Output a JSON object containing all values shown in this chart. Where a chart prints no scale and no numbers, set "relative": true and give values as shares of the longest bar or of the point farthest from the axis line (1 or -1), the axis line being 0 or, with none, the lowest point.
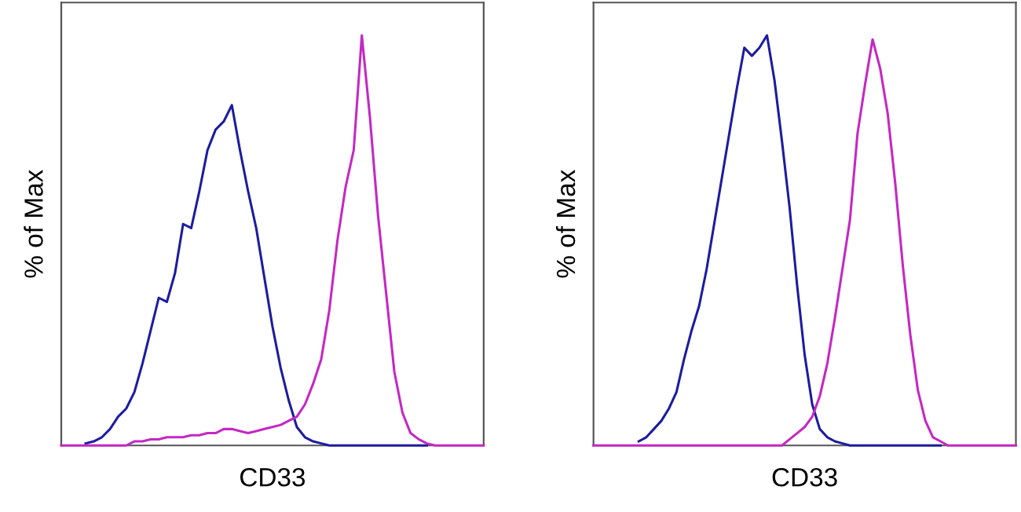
{
  "chart_data": [
    {
      "type": "line",
      "relative": true,
      "ylabel": "% of Max",
      "xlabel": "CD33",
      "categories": [
        null,
        null,
        null,
        null,
        null,
        null,
        null,
        null,
        null,
        null,
        null,
        null,
        null,
        null,
        null,
        null,
        null,
        null,
        null,
        null,
        null,
        null,
        null,
        null,
        null,
        null,
        null,
        null,
        null,
        null,
        null,
        null,
        null,
        null,
        null,
        null,
        null,
        null,
        null,
        null,
        null,
        null,
        null,
        null,
        null,
        null,
        null,
        null,
        null,
        null,
        null,
        null,
        null
      ],
      "series": [
        {
          "color": "#1c1ca0",
          "values": [
            null,
            null,
            null,
            0.005,
            0.01,
            0.02,
            0.04,
            0.07,
            0.09,
            0.13,
            0.2,
            0.28,
            0.36,
            0.35,
            0.42,
            0.54,
            0.53,
            0.62,
            0.72,
            0.77,
            0.79,
            0.83,
            0.72,
            0.62,
            0.53,
            0.41,
            0.29,
            0.19,
            0.11,
            0.045,
            0.02,
            0.01,
            0.005,
            0,
            0,
            0,
            0,
            0,
            0,
            0,
            0,
            0,
            0,
            0,
            0,
            0,
            null,
            null,
            null,
            null,
            null,
            null,
            null
          ]
        },
        {
          "color": "#c428c4",
          "values": [
            0,
            0,
            0,
            0,
            0,
            0,
            0,
            0,
            0,
            0.01,
            0.01,
            0.015,
            0.015,
            0.02,
            0.02,
            0.02,
            0.025,
            0.025,
            0.03,
            0.03,
            0.04,
            0.04,
            0.035,
            0.03,
            0.035,
            0.04,
            0.045,
            0.05,
            0.06,
            0.07,
            0.1,
            0.15,
            0.21,
            0.33,
            0.5,
            0.63,
            0.72,
            1,
            0.8,
            0.56,
            0.37,
            0.18,
            0.08,
            0.03,
            0.015,
            0.005,
            0,
            0,
            0,
            0,
            0,
            0,
            0
          ]
        }
      ]
    },
    {
      "type": "line",
      "relative": true,
      "ylabel": "% of Max",
      "xlabel": "CD33",
      "categories": [
        null,
        null,
        null,
        null,
        null,
        null,
        null,
        null,
        null,
        null,
        null,
        null,
        null,
        null,
        null,
        null,
        null,
        null,
        null,
        null,
        null,
        null,
        null,
        null,
        null,
        null,
        null,
        null,
        null,
        null,
        null,
        null,
        null,
        null,
        null,
        null,
        null,
        null,
        null,
        null,
        null,
        null,
        null,
        null,
        null,
        null,
        null,
        null,
        null,
        null,
        null,
        null,
        null,
        null,
        null,
        null,
        null
      ],
      "series": [
        {
          "color": "#1c1ca0",
          "values": [
            null,
            null,
            null,
            null,
            null,
            null,
            0.01,
            0.02,
            0.04,
            0.06,
            0.09,
            0.13,
            0.21,
            0.28,
            0.34,
            0.43,
            0.54,
            0.65,
            0.76,
            0.87,
            0.97,
            0.95,
            0.97,
            1,
            0.89,
            0.74,
            0.58,
            0.39,
            0.22,
            0.1,
            0.04,
            0.02,
            0.01,
            0.005,
            0,
            0,
            0,
            0,
            0,
            0,
            0,
            0,
            0,
            0,
            0,
            0,
            0,
            null,
            null,
            null,
            null,
            null,
            null,
            null,
            null,
            null,
            null
          ]
        },
        {
          "color": "#c428c4",
          "values": [
            0,
            0,
            0,
            0,
            0,
            0,
            0,
            0,
            0,
            0,
            0,
            0,
            0,
            0,
            0,
            0,
            0,
            0,
            0,
            0,
            0,
            0,
            0,
            0,
            0,
            0,
            0.015,
            0.03,
            0.045,
            0.07,
            0.12,
            0.2,
            0.31,
            0.43,
            0.55,
            0.76,
            0.88,
            0.99,
            0.92,
            0.81,
            0.64,
            0.44,
            0.27,
            0.135,
            0.06,
            0.02,
            0.01,
            0,
            0,
            0,
            0,
            0,
            0,
            0,
            0,
            0,
            0
          ]
        }
      ]
    }
  ]
}
